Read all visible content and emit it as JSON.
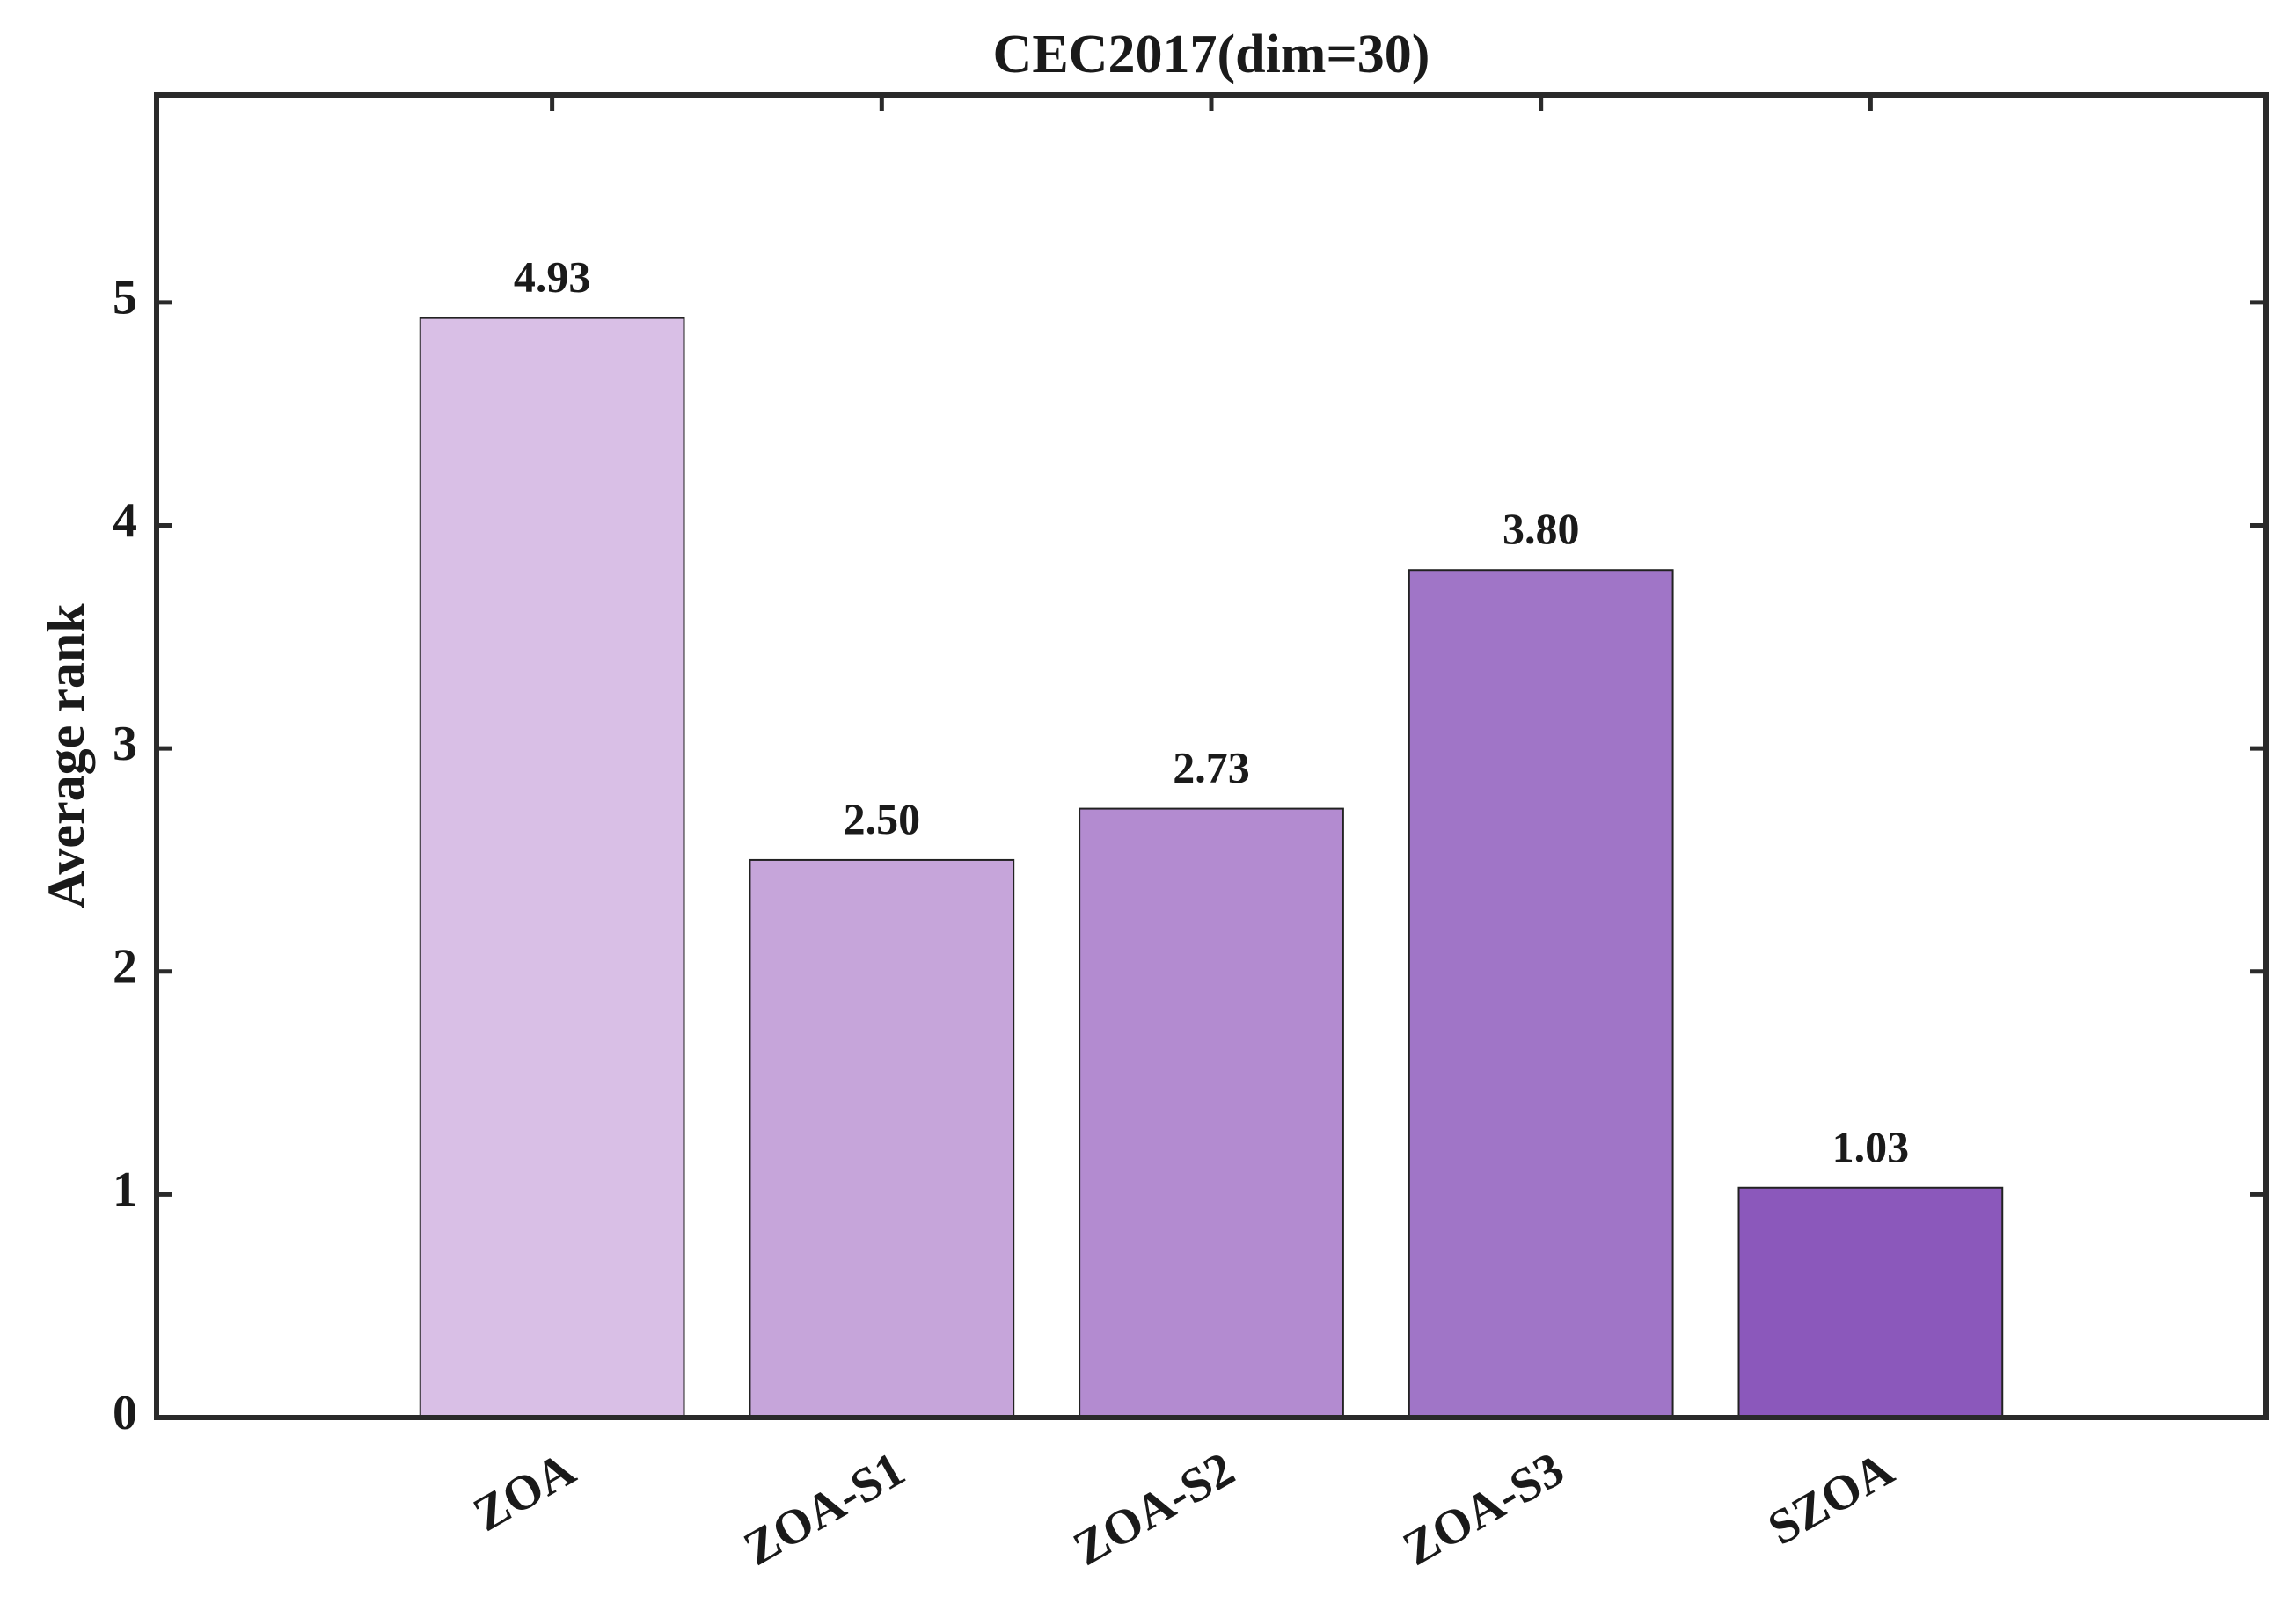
{
  "chart_data": {
    "type": "bar",
    "title": "CEC2017(dim=30)",
    "y_label": "Average rank",
    "categories": [
      "ZOA",
      "ZOA-S1",
      "ZOA-S2",
      "ZOA-S3",
      "SZOA"
    ],
    "values": [
      4.93,
      2.5,
      2.73,
      3.8,
      1.03
    ],
    "value_labels": [
      "4.93",
      "2.50",
      "2.73",
      "3.80",
      "1.03"
    ],
    "colors": [
      "#d9bfe6",
      "#c6a5da",
      "#b38bd0",
      "#a075c7",
      "#8b58bb"
    ],
    "ylim": [
      0,
      5.93
    ],
    "yticks": [
      0,
      1,
      2,
      3,
      4,
      5
    ],
    "grid": false
  }
}
